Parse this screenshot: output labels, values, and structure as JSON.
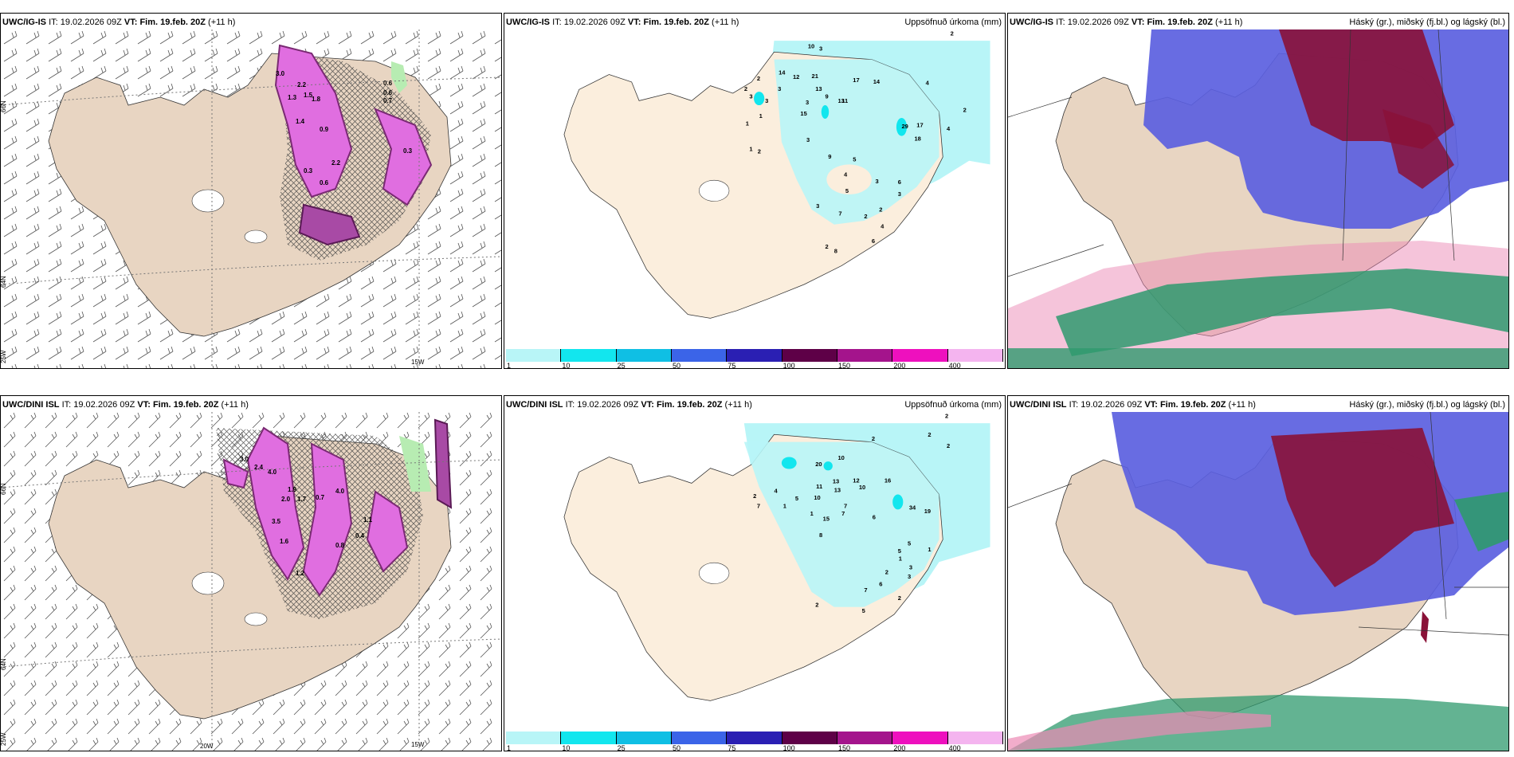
{
  "rows": [
    {
      "model": "UWC/IG-IS",
      "it_label": "IT:",
      "it_value": "19.02.2026 09Z",
      "vt_label": "VT:",
      "vt_value": "Fim. 19.feb. 20Z",
      "lead": "(+11 h)"
    },
    {
      "model": "UWC/DINI ISL",
      "it_label": "IT:",
      "it_value": "19.02.2026 09Z",
      "vt_label": "VT:",
      "vt_value": "Fim. 19.feb. 20Z",
      "lead": "(+11 h)"
    }
  ],
  "precip_title": "Uppsöfnuð úrkoma (mm)",
  "cloud_title": "Háský (gr.), miðský (fj.bl.) og lágský (bl.)",
  "legend": {
    "ticks": [
      "1",
      "10",
      "25",
      "50",
      "75",
      "100",
      "150",
      "200",
      "400"
    ],
    "colors": [
      "#b8f5f7",
      "#12e6ee",
      "#0fbfe4",
      "#3b64e8",
      "#2a1fb3",
      "#5e0047",
      "#a4148c",
      "#ee10be",
      "#f4b4ef"
    ]
  },
  "axis": {
    "lat_66": "66N",
    "lat_64": "64N",
    "lon_25": "25W",
    "lon_15": "15W",
    "lon_20": "20W"
  },
  "top_precip_labels": [
    "2",
    "3",
    "10",
    "14",
    "12",
    "21",
    "13",
    "13",
    "17",
    "11",
    "9",
    "15",
    "14",
    "4",
    "2",
    "29",
    "17",
    "18",
    "4",
    "3",
    "3",
    "3",
    "3",
    "2",
    "2",
    "1",
    "1",
    "2",
    "3",
    "9",
    "4",
    "5",
    "3",
    "7",
    "3",
    "5",
    "6",
    "3",
    "2",
    "2",
    "4",
    "6",
    "8",
    "2",
    "1"
  ],
  "bottom_precip_labels": [
    "2",
    "2",
    "2",
    "2",
    "10",
    "20",
    "13",
    "10",
    "12",
    "16",
    "11",
    "10",
    "13",
    "7",
    "7",
    "34",
    "19",
    "15",
    "6",
    "8",
    "5",
    "5",
    "2",
    "1",
    "3",
    "3",
    "6",
    "7",
    "2",
    "2",
    "5",
    "1",
    "1",
    "2",
    "7",
    "1",
    "4",
    "5"
  ],
  "top_snow_labels": [
    "3.0",
    "2.2",
    "1.3",
    "1.5",
    "1.8",
    "0.6",
    "0.6",
    "0.7",
    "1.4",
    "0.9",
    "2.2",
    "0.3",
    "0.6",
    "0.3"
  ],
  "bottom_snow_labels": [
    "3.0",
    "2.4",
    "4.0",
    "1.9",
    "2.0",
    "1.7",
    "3.5",
    "1.6",
    "0.7",
    "4.0",
    "1.1",
    "0.4",
    "0.8",
    "1.2"
  ],
  "colors": {
    "land": "#e8d5c2",
    "land_light": "#fbeedd",
    "ocean": "#ffffff",
    "snow_dark": "#7a2a73",
    "snow_light": "#e06ee0",
    "precip_light": "#b8f5f7",
    "high_cloud": "#ec8ab5",
    "mid_cloud": "#5b5fe0",
    "mid_cloud_dark": "#3a36b8",
    "low_cloud": "#2f9a6e",
    "deep_red": "#8a1238",
    "green_halo": "#b7ecb2"
  }
}
